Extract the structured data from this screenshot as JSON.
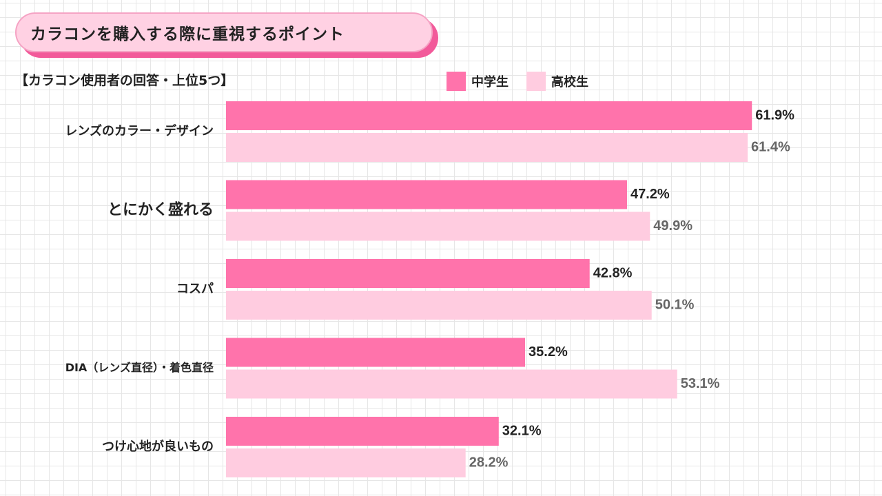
{
  "title": "カラコンを購入する際に重視するポイント",
  "subtitle": "【カラコン使用者の回答・上位5つ】",
  "colors": {
    "series1": "#ff73ab",
    "series2": "#ffcce0",
    "label1": "#222222",
    "label2": "#666666",
    "title_shadow": "#f25a9a",
    "title_fill": "#ffd1e3"
  },
  "chart_data": {
    "type": "bar",
    "orientation": "horizontal",
    "categories": [
      "レンズのカラー・デザイン",
      "とにかく盛れる",
      "コスパ",
      "DIA（レンズ直径）・着色直径",
      "つけ心地が良いもの"
    ],
    "series": [
      {
        "name": "中学生",
        "values": [
          61.9,
          47.2,
          42.8,
          35.2,
          32.1
        ]
      },
      {
        "name": "高校生",
        "values": [
          61.4,
          49.9,
          50.1,
          53.1,
          28.2
        ]
      }
    ],
    "value_suffix": "%",
    "xlim": [
      0,
      100
    ],
    "legend_position": "top",
    "grid": false
  }
}
